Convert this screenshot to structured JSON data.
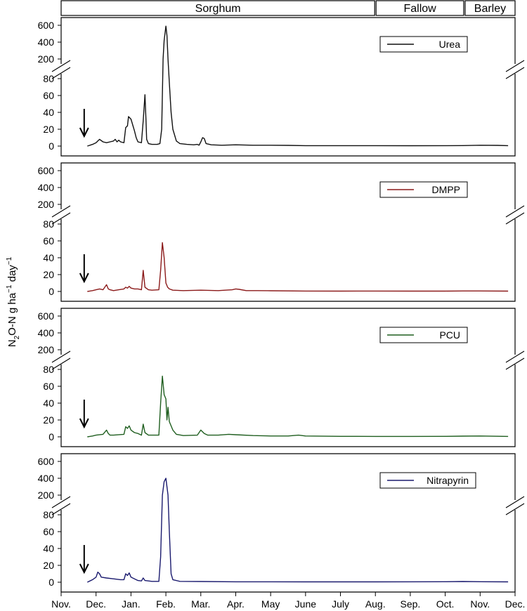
{
  "chart_data": {
    "type": "line",
    "seasons": [
      {
        "label": "Sorghum",
        "start": 0,
        "end": 9.0
      },
      {
        "label": "Fallow",
        "start": 9.0,
        "end": 11.55
      },
      {
        "label": "Barley",
        "start": 11.55,
        "end": 13
      }
    ],
    "x_tick_labels": [
      "Nov.",
      "Dec.",
      "Jan.",
      "Feb.",
      "Mar.",
      "Apr.",
      "May",
      "June",
      "July",
      "Aug.",
      "Sep.",
      "Oct.",
      "Nov.",
      "Dec."
    ],
    "xlim": [
      0,
      13
    ],
    "ylabel": "N2O-N g ha−1 day−1",
    "ylabel_parts": {
      "a": "N",
      "b": "2",
      "c": "O-N g ha",
      "d": "−1",
      "e": " day",
      "f": "−1"
    },
    "y_upper_ticks": [
      "600",
      "400",
      "200"
    ],
    "y_lower_ticks": [
      "80",
      "60",
      "40",
      "20",
      "0"
    ],
    "ylim_lower": [
      0,
      80
    ],
    "ylim_upper": [
      200,
      600
    ],
    "application_x": 0.6,
    "series": [
      {
        "name": "Urea",
        "color": "#111111",
        "points": [
          [
            0.75,
            0
          ],
          [
            0.9,
            2
          ],
          [
            1.0,
            4
          ],
          [
            1.05,
            6
          ],
          [
            1.1,
            8
          ],
          [
            1.2,
            5
          ],
          [
            1.3,
            4
          ],
          [
            1.4,
            5
          ],
          [
            1.5,
            6
          ],
          [
            1.55,
            8
          ],
          [
            1.6,
            5
          ],
          [
            1.65,
            7
          ],
          [
            1.7,
            5
          ],
          [
            1.8,
            4
          ],
          [
            1.85,
            22
          ],
          [
            1.9,
            24
          ],
          [
            1.93,
            35
          ],
          [
            2.0,
            32
          ],
          [
            2.05,
            25
          ],
          [
            2.1,
            18
          ],
          [
            2.15,
            10
          ],
          [
            2.2,
            5
          ],
          [
            2.3,
            4
          ],
          [
            2.35,
            30
          ],
          [
            2.4,
            61
          ],
          [
            2.43,
            30
          ],
          [
            2.45,
            8
          ],
          [
            2.5,
            3
          ],
          [
            2.6,
            2
          ],
          [
            2.75,
            2
          ],
          [
            2.83,
            3
          ],
          [
            2.88,
            20
          ],
          [
            2.92,
            200
          ],
          [
            2.95,
            420
          ],
          [
            3.0,
            590
          ],
          [
            3.03,
            480
          ],
          [
            3.06,
            200
          ],
          [
            3.1,
            75
          ],
          [
            3.15,
            40
          ],
          [
            3.2,
            20
          ],
          [
            3.3,
            6
          ],
          [
            3.4,
            3
          ],
          [
            3.6,
            2
          ],
          [
            3.8,
            1.5
          ],
          [
            3.9,
            2
          ],
          [
            3.95,
            1
          ],
          [
            4.0,
            5
          ],
          [
            4.05,
            10
          ],
          [
            4.1,
            9
          ],
          [
            4.15,
            3
          ],
          [
            4.3,
            1.5
          ],
          [
            4.6,
            1
          ],
          [
            5.0,
            1.5
          ],
          [
            5.5,
            1
          ],
          [
            6.0,
            1
          ],
          [
            6.5,
            0.8
          ],
          [
            7.0,
            0.5
          ],
          [
            8.0,
            0.5
          ],
          [
            9.0,
            0.5
          ],
          [
            10.0,
            0.4
          ],
          [
            11.0,
            0.5
          ],
          [
            11.5,
            0.6
          ],
          [
            12.0,
            1
          ],
          [
            12.5,
            0.8
          ],
          [
            12.8,
            0.5
          ]
        ]
      },
      {
        "name": "DMPP",
        "color": "#8b1a1a",
        "points": [
          [
            0.75,
            0
          ],
          [
            0.9,
            1
          ],
          [
            1.0,
            2
          ],
          [
            1.1,
            3
          ],
          [
            1.2,
            2
          ],
          [
            1.3,
            8
          ],
          [
            1.35,
            3
          ],
          [
            1.4,
            2
          ],
          [
            1.5,
            1
          ],
          [
            1.65,
            2
          ],
          [
            1.8,
            3
          ],
          [
            1.85,
            5
          ],
          [
            1.9,
            4
          ],
          [
            1.95,
            6
          ],
          [
            2.0,
            4
          ],
          [
            2.1,
            3
          ],
          [
            2.2,
            3
          ],
          [
            2.3,
            2
          ],
          [
            2.35,
            25
          ],
          [
            2.4,
            5
          ],
          [
            2.5,
            2
          ],
          [
            2.6,
            1.5
          ],
          [
            2.8,
            2
          ],
          [
            2.85,
            25
          ],
          [
            2.9,
            58
          ],
          [
            2.95,
            40
          ],
          [
            3.0,
            10
          ],
          [
            3.05,
            5
          ],
          [
            3.1,
            3
          ],
          [
            3.2,
            1.5
          ],
          [
            3.5,
            1
          ],
          [
            4.0,
            1.5
          ],
          [
            4.5,
            1
          ],
          [
            4.9,
            2
          ],
          [
            5.0,
            3
          ],
          [
            5.1,
            2.5
          ],
          [
            5.3,
            1
          ],
          [
            5.6,
            1
          ],
          [
            6.0,
            0.8
          ],
          [
            7.0,
            0.5
          ],
          [
            8.0,
            0.4
          ],
          [
            9.0,
            0.5
          ],
          [
            10.0,
            0.4
          ],
          [
            11.0,
            0.4
          ],
          [
            11.5,
            0.6
          ],
          [
            12.0,
            0.6
          ],
          [
            12.8,
            0.4
          ]
        ]
      },
      {
        "name": "PCU",
        "color": "#1f5e1f",
        "points": [
          [
            0.75,
            0
          ],
          [
            0.9,
            1
          ],
          [
            1.0,
            2
          ],
          [
            1.2,
            3
          ],
          [
            1.3,
            8
          ],
          [
            1.35,
            4
          ],
          [
            1.4,
            2
          ],
          [
            1.5,
            2
          ],
          [
            1.8,
            3
          ],
          [
            1.85,
            12
          ],
          [
            1.9,
            10
          ],
          [
            1.95,
            13
          ],
          [
            2.0,
            8
          ],
          [
            2.1,
            5
          ],
          [
            2.2,
            4
          ],
          [
            2.3,
            2
          ],
          [
            2.35,
            15
          ],
          [
            2.4,
            5
          ],
          [
            2.5,
            2
          ],
          [
            2.8,
            2
          ],
          [
            2.85,
            40
          ],
          [
            2.9,
            72
          ],
          [
            2.95,
            50
          ],
          [
            3.0,
            45
          ],
          [
            3.03,
            20
          ],
          [
            3.06,
            35
          ],
          [
            3.1,
            18
          ],
          [
            3.2,
            8
          ],
          [
            3.3,
            3
          ],
          [
            3.5,
            1.5
          ],
          [
            3.9,
            2
          ],
          [
            4.0,
            8
          ],
          [
            4.1,
            4
          ],
          [
            4.2,
            2
          ],
          [
            4.5,
            2
          ],
          [
            4.8,
            3
          ],
          [
            5.0,
            2.5
          ],
          [
            5.5,
            1.5
          ],
          [
            6.0,
            1
          ],
          [
            6.5,
            1
          ],
          [
            6.8,
            2
          ],
          [
            7.0,
            1
          ],
          [
            8.0,
            0.6
          ],
          [
            9.0,
            0.5
          ],
          [
            10.0,
            0.5
          ],
          [
            11.0,
            0.6
          ],
          [
            11.5,
            0.8
          ],
          [
            12.0,
            1
          ],
          [
            12.8,
            0.5
          ]
        ]
      },
      {
        "name": "Nitrapyrin",
        "color": "#1a1a6e",
        "points": [
          [
            0.75,
            0
          ],
          [
            0.9,
            3
          ],
          [
            1.0,
            6
          ],
          [
            1.05,
            12
          ],
          [
            1.1,
            10
          ],
          [
            1.15,
            6
          ],
          [
            1.3,
            5
          ],
          [
            1.5,
            4
          ],
          [
            1.7,
            3
          ],
          [
            1.8,
            3
          ],
          [
            1.85,
            10
          ],
          [
            1.9,
            8
          ],
          [
            1.95,
            11
          ],
          [
            2.0,
            6
          ],
          [
            2.1,
            4
          ],
          [
            2.2,
            2
          ],
          [
            2.3,
            1.5
          ],
          [
            2.35,
            5
          ],
          [
            2.4,
            2
          ],
          [
            2.6,
            1
          ],
          [
            2.8,
            1
          ],
          [
            2.85,
            30
          ],
          [
            2.9,
            200
          ],
          [
            2.95,
            360
          ],
          [
            3.0,
            400
          ],
          [
            3.03,
            300
          ],
          [
            3.06,
            200
          ],
          [
            3.1,
            60
          ],
          [
            3.15,
            10
          ],
          [
            3.2,
            3
          ],
          [
            3.4,
            1
          ],
          [
            4.0,
            0.8
          ],
          [
            5.0,
            0.5
          ],
          [
            6.0,
            0.5
          ],
          [
            7.0,
            0.4
          ],
          [
            8.0,
            0.4
          ],
          [
            9.0,
            0.4
          ],
          [
            10.0,
            0.5
          ],
          [
            11.0,
            0.6
          ],
          [
            11.5,
            0.8
          ],
          [
            12.0,
            0.6
          ],
          [
            12.8,
            0.4
          ]
        ]
      }
    ]
  }
}
